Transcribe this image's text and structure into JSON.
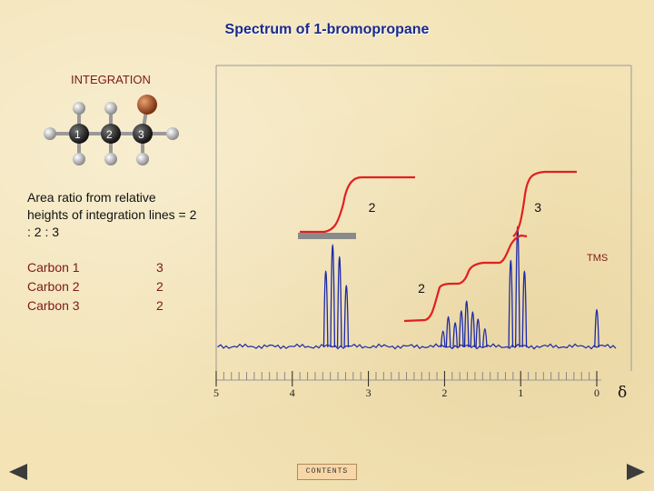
{
  "title": "Spectrum of 1-bromopropane",
  "integration_label": "INTEGRATION",
  "molecule": {
    "atom_labels": [
      "1",
      "2",
      "3"
    ],
    "colors": {
      "carbon": "#222222",
      "hydrogen": "#bdbdbd",
      "bromine": "#a0522d"
    }
  },
  "ratio_text": "Area ratio from relative heights of integration lines = 2 : 2 : 3",
  "carbons": [
    {
      "name": "Carbon 1",
      "value": "3"
    },
    {
      "name": "Carbon 2",
      "value": "2"
    },
    {
      "name": "Carbon 3",
      "value": "2"
    }
  ],
  "chart_data": {
    "type": "line",
    "title": "",
    "xlabel": "δ",
    "ylabel": "",
    "xlim": [
      5,
      0
    ],
    "x_reversed": true,
    "x_ticks": [
      "5",
      "4",
      "3",
      "2",
      "1",
      "0"
    ],
    "peaks": [
      {
        "x": 3.56,
        "height": 0.62
      },
      {
        "x": 3.47,
        "height": 0.84
      },
      {
        "x": 3.38,
        "height": 0.74
      },
      {
        "x": 3.29,
        "height": 0.5
      },
      {
        "x": 2.02,
        "height": 0.12
      },
      {
        "x": 1.95,
        "height": 0.24
      },
      {
        "x": 1.86,
        "height": 0.19
      },
      {
        "x": 1.78,
        "height": 0.29
      },
      {
        "x": 1.71,
        "height": 0.37
      },
      {
        "x": 1.63,
        "height": 0.28
      },
      {
        "x": 1.56,
        "height": 0.22
      },
      {
        "x": 1.47,
        "height": 0.14
      },
      {
        "x": 1.13,
        "height": 0.71
      },
      {
        "x": 1.04,
        "height": 0.99
      },
      {
        "x": 0.95,
        "height": 0.62
      },
      {
        "x": 0.0,
        "height": 0.3
      }
    ],
    "peak_color": "#1c2aa8",
    "integration_color": "#e02020",
    "integration_labels": [
      {
        "label": "2",
        "x": 3.0
      },
      {
        "label": "3",
        "x": 0.82
      },
      {
        "label": "2",
        "x": 2.35
      }
    ],
    "tms_label": "TMS"
  },
  "nav": {
    "contents_label": "CONTENTS"
  }
}
